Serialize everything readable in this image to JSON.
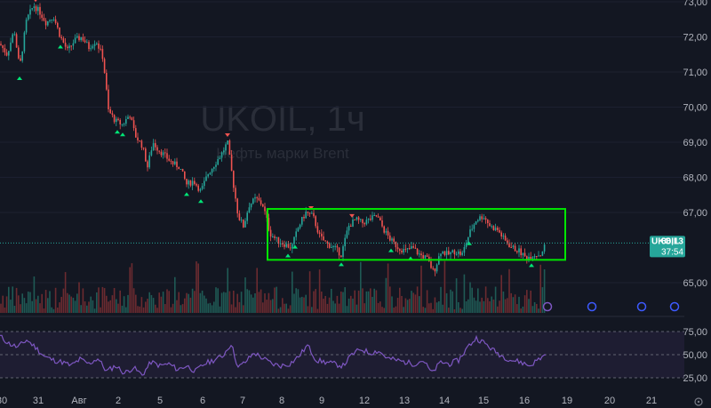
{
  "chart_data": {
    "type": "candlestick",
    "symbol": "UKOIL",
    "watermark_title": "UKOIL, 1ч",
    "watermark_subtitle": "Нефть марки Brent",
    "last_price_label": "66,13",
    "countdown_label": "37:54",
    "price_ticks": [
      "73,00",
      "72,00",
      "71,00",
      "70,00",
      "69,00",
      "68,00",
      "67,00",
      "65,00"
    ],
    "price_tick_values": [
      73,
      72,
      71,
      70,
      69,
      68,
      67,
      65
    ],
    "ylim": [
      64.6,
      73.1
    ],
    "last_price": 66.13,
    "time_ticks": [
      "30",
      "31",
      "Авг",
      "2",
      "5",
      "6",
      "7",
      "8",
      "9",
      "12",
      "13",
      "14",
      "15",
      "16",
      "19",
      "20",
      "21"
    ],
    "rsi_ticks": [
      "75,00",
      "50,00",
      "25,00"
    ],
    "rsi_levels": [
      75,
      50,
      25
    ],
    "rsi_ylim": [
      20,
      80
    ],
    "rsi_line_color": "#7e57c2",
    "rsi_band_color": "#7e57c2",
    "up_color": "#26a69a",
    "down_color": "#ef5350",
    "consolidation_box": {
      "price_top": 67.1,
      "price_bottom": 65.65,
      "color": "#00e600"
    },
    "price_path": [
      [
        0,
        71.8
      ],
      [
        8,
        71.5
      ],
      [
        16,
        72.2
      ],
      [
        22,
        71.1
      ],
      [
        30,
        72.5
      ],
      [
        38,
        72.9
      ],
      [
        45,
        72.7
      ],
      [
        52,
        72.4
      ],
      [
        60,
        72.6
      ],
      [
        68,
        72.0
      ],
      [
        76,
        71.6
      ],
      [
        84,
        71.9
      ],
      [
        92,
        72.0
      ],
      [
        100,
        71.7
      ],
      [
        108,
        71.9
      ],
      [
        116,
        71.4
      ],
      [
        122,
        69.9
      ],
      [
        130,
        69.6
      ],
      [
        138,
        69.5
      ],
      [
        146,
        69.8
      ],
      [
        152,
        69.2
      ],
      [
        160,
        68.9
      ],
      [
        166,
        68.3
      ],
      [
        172,
        69.0
      ],
      [
        178,
        68.8
      ],
      [
        186,
        68.6
      ],
      [
        194,
        68.4
      ],
      [
        202,
        68.3
      ],
      [
        210,
        67.8
      ],
      [
        218,
        67.9
      ],
      [
        226,
        67.6
      ],
      [
        234,
        68.1
      ],
      [
        242,
        68.4
      ],
      [
        250,
        68.7
      ],
      [
        256,
        69.0
      ],
      [
        262,
        67.9
      ],
      [
        268,
        66.9
      ],
      [
        274,
        66.6
      ],
      [
        280,
        67.2
      ],
      [
        288,
        67.4
      ],
      [
        296,
        67.2
      ],
      [
        304,
        66.4
      ],
      [
        312,
        66.2
      ],
      [
        320,
        66.1
      ],
      [
        328,
        66.0
      ],
      [
        336,
        66.6
      ],
      [
        344,
        67.0
      ],
      [
        352,
        66.9
      ],
      [
        360,
        66.3
      ],
      [
        368,
        66.1
      ],
      [
        376,
        66.0
      ],
      [
        384,
        65.8
      ],
      [
        392,
        66.6
      ],
      [
        400,
        66.8
      ],
      [
        408,
        66.7
      ],
      [
        416,
        66.8
      ],
      [
        424,
        66.9
      ],
      [
        432,
        66.5
      ],
      [
        440,
        66.2
      ],
      [
        448,
        66.0
      ],
      [
        456,
        65.9
      ],
      [
        464,
        66.0
      ],
      [
        472,
        65.8
      ],
      [
        480,
        65.7
      ],
      [
        488,
        65.3
      ],
      [
        496,
        65.9
      ],
      [
        504,
        65.8
      ],
      [
        512,
        65.9
      ],
      [
        520,
        65.8
      ],
      [
        528,
        66.4
      ],
      [
        536,
        66.8
      ],
      [
        544,
        66.9
      ],
      [
        552,
        66.6
      ],
      [
        560,
        66.5
      ],
      [
        568,
        66.2
      ],
      [
        576,
        66.0
      ],
      [
        584,
        65.9
      ],
      [
        592,
        65.7
      ],
      [
        600,
        65.8
      ],
      [
        608,
        65.8
      ],
      [
        614,
        66.1
      ]
    ],
    "rsi_path": [
      [
        0,
        70
      ],
      [
        10,
        62
      ],
      [
        20,
        58
      ],
      [
        30,
        66
      ],
      [
        40,
        58
      ],
      [
        50,
        48
      ],
      [
        60,
        44
      ],
      [
        70,
        42
      ],
      [
        80,
        38
      ],
      [
        90,
        45
      ],
      [
        100,
        40
      ],
      [
        110,
        46
      ],
      [
        120,
        32
      ],
      [
        130,
        38
      ],
      [
        140,
        30
      ],
      [
        150,
        36
      ],
      [
        160,
        28
      ],
      [
        170,
        42
      ],
      [
        180,
        38
      ],
      [
        190,
        40
      ],
      [
        200,
        34
      ],
      [
        210,
        38
      ],
      [
        220,
        32
      ],
      [
        230,
        40
      ],
      [
        240,
        44
      ],
      [
        250,
        48
      ],
      [
        260,
        62
      ],
      [
        268,
        36
      ],
      [
        276,
        42
      ],
      [
        286,
        52
      ],
      [
        296,
        46
      ],
      [
        306,
        40
      ],
      [
        316,
        38
      ],
      [
        326,
        40
      ],
      [
        336,
        48
      ],
      [
        346,
        60
      ],
      [
        356,
        44
      ],
      [
        366,
        42
      ],
      [
        376,
        40
      ],
      [
        386,
        38
      ],
      [
        396,
        50
      ],
      [
        406,
        56
      ],
      [
        416,
        52
      ],
      [
        426,
        54
      ],
      [
        436,
        46
      ],
      [
        446,
        44
      ],
      [
        456,
        42
      ],
      [
        466,
        40
      ],
      [
        476,
        44
      ],
      [
        486,
        30
      ],
      [
        496,
        42
      ],
      [
        506,
        40
      ],
      [
        516,
        44
      ],
      [
        526,
        58
      ],
      [
        536,
        68
      ],
      [
        546,
        62
      ],
      [
        556,
        54
      ],
      [
        566,
        48
      ],
      [
        576,
        44
      ],
      [
        586,
        42
      ],
      [
        596,
        38
      ],
      [
        606,
        45
      ],
      [
        614,
        50
      ]
    ]
  }
}
